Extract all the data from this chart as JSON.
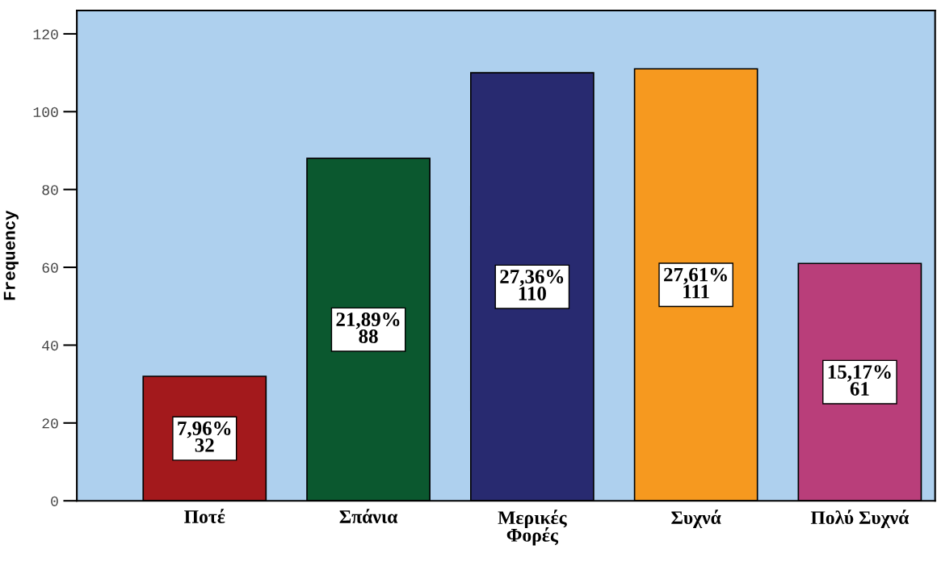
{
  "chart_data": {
    "type": "bar",
    "ylabel": "Frequency",
    "categories": [
      "Ποτέ",
      "Σπάνια",
      "Μερικές\nΦορές",
      "Συχνά",
      "Πολύ Συχνά"
    ],
    "values": [
      32,
      88,
      110,
      111,
      61
    ],
    "colors": [
      "#a3191c",
      "#0b582f",
      "#282a70",
      "#f6991f",
      "#b93e7a"
    ],
    "value_labels": [
      "7,96%\n32",
      "21,89%\n88",
      "27,36%\n110",
      "27,61%\n111",
      "15,17%\n61"
    ],
    "ylim": [
      0,
      126
    ],
    "yticks": [
      0,
      20,
      40,
      60,
      80,
      100,
      120
    ],
    "grid": false
  }
}
